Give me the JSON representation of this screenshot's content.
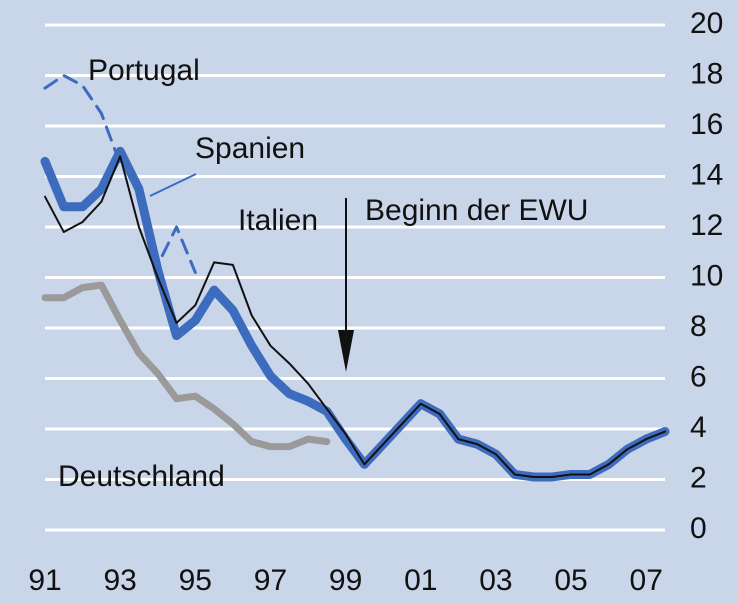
{
  "chart_data": {
    "type": "line",
    "x": [
      1991,
      1991.5,
      1992,
      1992.5,
      1993,
      1993.5,
      1994,
      1994.5,
      1995,
      1995.5,
      1996,
      1996.5,
      1997,
      1997.5,
      1998,
      1998.5,
      1999,
      1999.5,
      2000,
      2000.5,
      2001,
      2001.5,
      2002,
      2002.5,
      2003,
      2003.5,
      2004,
      2004.5,
      2005,
      2005.5,
      2006,
      2006.5,
      2007,
      2007.5
    ],
    "series": [
      {
        "name": "Deutschland",
        "color": "#9a9a9a",
        "values": [
          9.2,
          9.2,
          9.6,
          9.7,
          8.3,
          7.0,
          6.2,
          5.2,
          5.3,
          4.8,
          4.2,
          3.5,
          3.3,
          3.3,
          3.6,
          3.5,
          null,
          null,
          null,
          null,
          null,
          null,
          null,
          null,
          null,
          null,
          null,
          null,
          null,
          null,
          null,
          null,
          null,
          null
        ]
      },
      {
        "name": "Portugal",
        "color": "#3d6cbf",
        "dashed": true,
        "values": [
          17.5,
          18.0,
          17.6,
          16.5,
          14.5,
          13.8,
          10.5,
          12.0,
          10.2,
          null,
          null,
          null,
          null,
          null,
          null,
          null,
          null,
          null,
          null,
          null,
          null,
          null,
          null,
          null,
          null,
          null,
          null,
          null,
          null,
          null,
          null,
          null,
          null,
          null
        ]
      },
      {
        "name": "Spanien",
        "color": "#3d6cbf",
        "values": [
          14.6,
          12.8,
          12.8,
          13.5,
          15.0,
          13.5,
          10.3,
          7.7,
          8.3,
          9.5,
          8.7,
          7.3,
          6.1,
          5.4,
          5.1,
          4.7,
          3.6,
          2.6,
          3.4,
          4.2,
          5.0,
          4.6,
          3.6,
          3.4,
          3.0,
          2.2,
          2.1,
          2.1,
          2.2,
          2.2,
          2.6,
          3.2,
          3.6,
          3.9
        ]
      },
      {
        "name": "Italien",
        "color": "#111111",
        "values": [
          13.2,
          11.8,
          12.2,
          13.0,
          14.8,
          12.0,
          10.0,
          8.2,
          8.9,
          10.6,
          10.5,
          8.5,
          7.3,
          6.6,
          5.8,
          4.8,
          3.8,
          2.6,
          3.4,
          4.2,
          5.0,
          4.6,
          3.6,
          3.4,
          3.0,
          2.2,
          2.1,
          2.1,
          2.2,
          2.2,
          2.6,
          3.2,
          3.6,
          3.9
        ]
      }
    ],
    "annotations": [
      "Beginn der EWU"
    ],
    "xlim": [
      1991,
      2007.5
    ],
    "xticks": [
      {
        "value": 1991,
        "label": "91"
      },
      {
        "value": 1993,
        "label": "93"
      },
      {
        "value": 1995,
        "label": "95"
      },
      {
        "value": 1997,
        "label": "97"
      },
      {
        "value": 1999,
        "label": "99"
      },
      {
        "value": 2001,
        "label": "01"
      },
      {
        "value": 2003,
        "label": "03"
      },
      {
        "value": 2005,
        "label": "05"
      },
      {
        "value": 2007,
        "label": "07"
      }
    ],
    "ylim": [
      0,
      20
    ],
    "yticks": [
      0,
      2,
      4,
      6,
      8,
      10,
      12,
      14,
      16,
      18,
      20
    ],
    "grid": true
  }
}
